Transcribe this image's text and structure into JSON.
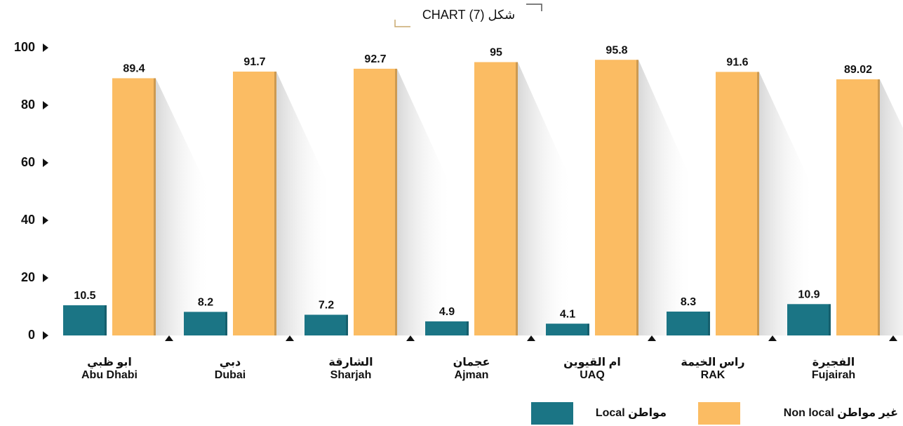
{
  "chart_data": {
    "type": "bar",
    "title": "شكل (7) CHART",
    "categories": [
      [
        "ابو ظبي",
        "Abu Dhabi"
      ],
      [
        "دبي",
        "Dubai"
      ],
      [
        "الشارقة",
        "Sharjah"
      ],
      [
        "عجمان",
        "Ajman"
      ],
      [
        "ام القيوين",
        "UAQ"
      ],
      [
        "راس الخيمة",
        "RAK"
      ],
      [
        "الفجيرة",
        "Fujairah"
      ]
    ],
    "series": [
      {
        "name": "مواطن Local",
        "color": "#1b7585",
        "values": [
          10.5,
          8.2,
          7.2,
          4.9,
          4.1,
          8.3,
          10.9
        ]
      },
      {
        "name": "غير مواطن Non local",
        "color": "#fbbc63",
        "values": [
          89.4,
          91.7,
          92.7,
          95,
          95.8,
          91.6,
          89.02
        ]
      }
    ],
    "ylim": [
      0,
      100
    ],
    "yticks": [
      0,
      20,
      40,
      60,
      80,
      100
    ],
    "grid": false
  }
}
